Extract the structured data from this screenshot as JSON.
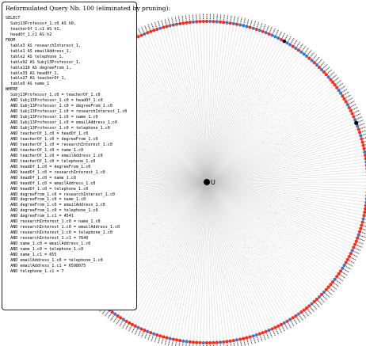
{
  "panel": {
    "title": "Reformulated Query Nb. 100 (eliminated by pruning):",
    "sql_lines": [
      "SELECT",
      "  Subj13Professor_1.c0 AS h0,",
      "  teacherOf_1.c1 AS h1,",
      "  headOf_1.c1 AS h2",
      "FROM",
      "  table3 AS researchInterest_1,",
      "  table1 AS emailAddress_1,",
      "  table2 AS telephone_1,",
      "  table92 AS Subj13Professor_1,",
      "  table110 AS degreeFrom_1,",
      "  table33 AS headOf_1,",
      "  table27 AS teacherOf_1,",
      "  table0 AS name_1",
      "WHERE",
      "  Subj13Professor_1.c0 = teacherOf_1.c0",
      "  AND Subj13Professor_1.c0 = headOf_1.c0",
      "  AND Subj13Professor_1.c0 = degreeFrom_1.c0",
      "  AND Subj13Professor_1.c0 = researchInterest_1.c0",
      "  AND Subj13Professor_1.c0 = name_1.c0",
      "  AND Subj13Professor_1.c0 = emailAddress_1.c0",
      "  AND Subj13Professor_1.c0 = telephone_1.c0",
      "  AND teacherOf_1.c0 = headOf_1.c0",
      "  AND teacherOf_1.c0 = degreeFrom_1.c0",
      "  AND teacherOf_1.c0 = researchInterest_1.c0",
      "  AND teacherOf_1.c0 = name_1.c0",
      "  AND teacherOf_1.c0 = emailAddress_1.c0",
      "  AND teacherOf_1.c0 = telephone_1.c0",
      "  AND headOf_1.c0 = degreeFrom_1.c0",
      "  AND headOf_1.c0 = researchInterest_1.c0",
      "  AND headOf_1.c0 = name_1.c0",
      "  AND headOf_1.c0 = emailAddress_1.c0",
      "  AND headOf_1.c0 = telephone_1.c0",
      "  AND degreeFrom_1.c0 = researchInterest_1.c0",
      "  AND degreeFrom_1.c0 = name_1.c0",
      "  AND degreeFrom_1.c0 = emailAddress_1.c0",
      "  AND degreeFrom_1.c0 = telephone_1.c0",
      "  AND degreeFrom_1.c1 = 4541",
      "  AND researchInterest_1.c0 = name_1.c0",
      "  AND researchInterest_1.c0 = emailAddress_1.c0",
      "  AND researchInterest_1.c0 = telephone_1.c0",
      "  AND researchInterest_1.c1 = 7640",
      "  AND name_1.c0 = emailAddress_1.c0",
      "  AND name_1.c0 = telephone_1.c0",
      "  AND name_1.c1 = 655",
      "  AND emailAddress_1.c0 = telephone_1.c0",
      "  AND emailAddress_1.c1 = 6598075",
      "  AND telephone_1.c1 = 7"
    ]
  },
  "graph": {
    "center_label": "U",
    "node_count": 300,
    "colors": {
      "background": "#ffffff",
      "edge": "#bdbdbd",
      "pruned_node": "#ff2a1a",
      "kept_node": "#3a78c8",
      "center_node": "#000000",
      "label": "#333333"
    }
  }
}
